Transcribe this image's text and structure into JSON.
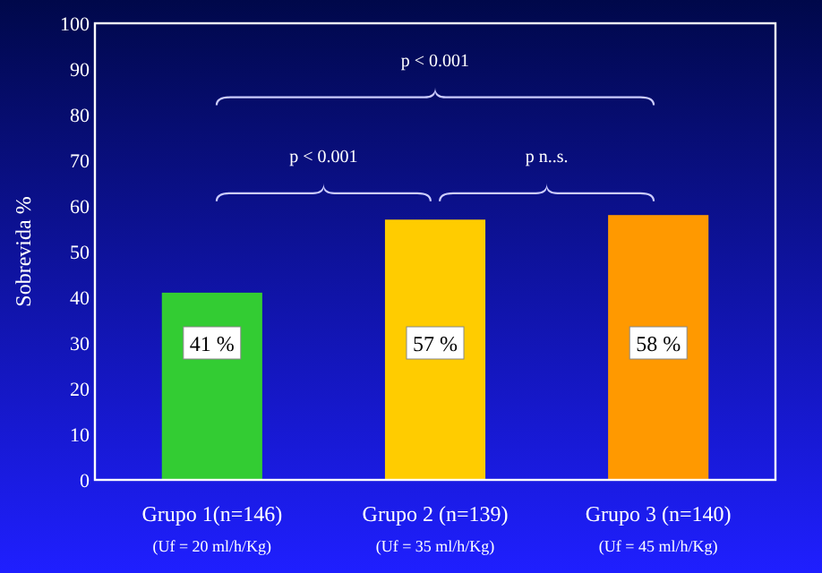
{
  "chart_data": {
    "type": "bar",
    "ylabel": "Sobrevida  %",
    "categories": [
      "Grupo 1(n=146)\n(Uf = 20 ml/h/Kg)",
      "Grupo 2 (n=139)\n(Uf = 35 ml/h/Kg)",
      "Grupo 3 (n=140)\n(Uf = 45 ml/h/Kg)"
    ],
    "values": [
      41,
      57,
      58
    ],
    "colors": [
      "#33cc33",
      "#ffcc00",
      "#ff9900"
    ],
    "value_labels": [
      "41 %",
      "57 %",
      "58 %"
    ],
    "ylim": [
      0,
      100
    ],
    "yticks": [
      0,
      10,
      20,
      30,
      40,
      50,
      60,
      70,
      80,
      90,
      100
    ],
    "grid": false,
    "annotations": [
      "p < 0.001",
      "p < 0.001",
      "p  n..s."
    ]
  }
}
